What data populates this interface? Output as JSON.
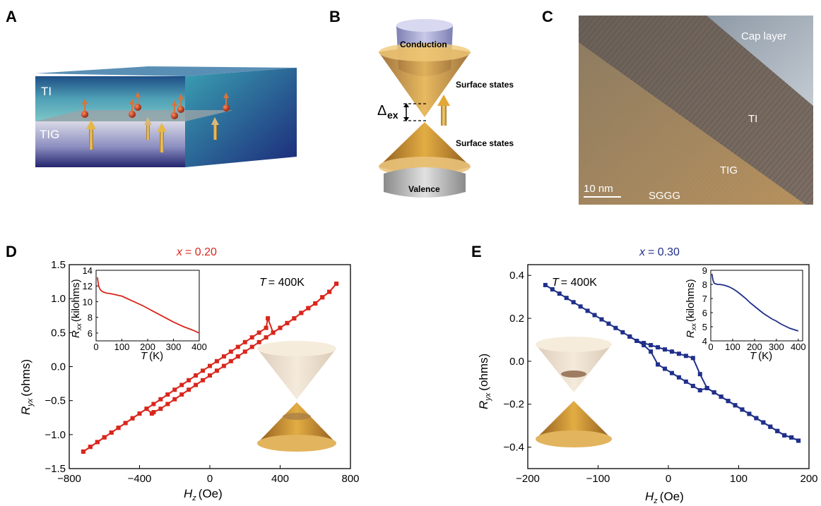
{
  "panels": {
    "A": {
      "letter": "A",
      "ti_label": "TI",
      "tig_label": "TIG"
    },
    "B": {
      "letter": "B",
      "conduction": "Conduction",
      "valence": "Valence",
      "surface_top": "Surface states",
      "surface_bottom": "Surface states",
      "gap_symbol": "Δ",
      "gap_subscript": "ex"
    },
    "C": {
      "letter": "C",
      "cap_layer": "Cap layer",
      "ti": "TI",
      "tig": "TIG",
      "substrate": "SGGG",
      "scalebar": "10 nm"
    },
    "D": {
      "letter": "D"
    },
    "E": {
      "letter": "E"
    }
  },
  "chart_data": [
    {
      "panel": "D",
      "type": "line",
      "title_var": "x",
      "title_value": "= 0.20",
      "color": "#d9261c",
      "xlabel_main": "H",
      "xlabel_sub": "z",
      "xlabel_unit": "(Oe)",
      "ylabel_main": "R",
      "ylabel_sub": "yx",
      "ylabel_unit": "(ohms)",
      "xlim": [
        -800,
        800
      ],
      "ylim": [
        -1.5,
        1.5
      ],
      "xticks": [
        "−800",
        "−400",
        "0",
        "400",
        "800"
      ],
      "yticks": [
        "−1.5",
        "−1.0",
        "−0.5",
        "0.0",
        "0.5",
        "1.0",
        "1.5"
      ],
      "annotation_var": "T",
      "annotation_value": "= 400K",
      "series": [
        {
          "x": [
            -720,
            -680,
            -640,
            -600,
            -560,
            -520,
            -480,
            -440,
            -400,
            -360,
            -320,
            -280,
            -240,
            -200,
            -160,
            -120,
            -80,
            -40,
            0,
            40,
            80,
            120,
            160,
            200,
            240,
            280,
            320,
            330,
            360,
            400,
            440,
            480,
            520,
            560,
            600,
            640,
            680,
            720
          ],
          "y": [
            -1.25,
            -1.18,
            -1.11,
            -1.04,
            -0.97,
            -0.9,
            -0.83,
            -0.76,
            -0.69,
            -0.62,
            -0.55,
            -0.48,
            -0.41,
            -0.34,
            -0.27,
            -0.2,
            -0.13,
            -0.06,
            0.01,
            0.08,
            0.15,
            0.22,
            0.29,
            0.36,
            0.43,
            0.5,
            0.57,
            0.71,
            0.5,
            0.57,
            0.64,
            0.71,
            0.79,
            0.86,
            0.93,
            1.02,
            1.1,
            1.22
          ]
        },
        {
          "x": [
            720,
            680,
            640,
            600,
            560,
            520,
            480,
            440,
            400,
            360,
            320,
            280,
            240,
            200,
            160,
            120,
            80,
            40,
            0,
            -40,
            -80,
            -120,
            -160,
            -200,
            -240,
            -280,
            -320,
            -330,
            -360,
            -400,
            -440,
            -480,
            -520,
            -560,
            -600,
            -640,
            -680,
            -720
          ],
          "y": [
            1.22,
            1.1,
            1.02,
            0.93,
            0.86,
            0.79,
            0.71,
            0.64,
            0.57,
            0.5,
            0.43,
            0.36,
            0.29,
            0.22,
            0.15,
            0.08,
            0.01,
            -0.06,
            -0.13,
            -0.2,
            -0.27,
            -0.34,
            -0.41,
            -0.48,
            -0.55,
            -0.62,
            -0.67,
            -0.69,
            -0.62,
            -0.69,
            -0.76,
            -0.83,
            -0.9,
            -0.97,
            -1.04,
            -1.11,
            -1.18,
            -1.25
          ]
        }
      ],
      "inset": {
        "type": "line",
        "xlabel_main": "T",
        "xlabel_unit": "(K)",
        "ylabel_main": "R",
        "ylabel_sub": "xx",
        "ylabel_unit": "(kilohms)",
        "xlim": [
          0,
          400
        ],
        "ylim": [
          5,
          14
        ],
        "xticks": [
          "0",
          "100",
          "200",
          "300",
          "400"
        ],
        "yticks": [
          "6",
          "8",
          "10",
          "12",
          "14"
        ],
        "x": [
          5,
          10,
          15,
          20,
          30,
          40,
          60,
          80,
          100,
          120,
          140,
          160,
          180,
          200,
          220,
          240,
          260,
          280,
          300,
          320,
          340,
          360,
          380,
          400
        ],
        "y": [
          13.1,
          12.0,
          11.6,
          11.4,
          11.2,
          11.1,
          11.0,
          10.85,
          10.7,
          10.4,
          10.1,
          9.8,
          9.5,
          9.15,
          8.8,
          8.45,
          8.1,
          7.75,
          7.4,
          7.1,
          6.8,
          6.55,
          6.3,
          6.0
        ]
      }
    },
    {
      "panel": "E",
      "type": "line",
      "title_var": "x",
      "title_value": "= 0.30",
      "color": "#1f2f8a",
      "xlabel_main": "H",
      "xlabel_sub": "z",
      "xlabel_unit": "(Oe)",
      "ylabel_main": "R",
      "ylabel_sub": "yx",
      "ylabel_unit": "(ohms)",
      "xlim": [
        -200,
        200
      ],
      "ylim": [
        -0.5,
        0.45
      ],
      "xticks": [
        "−200",
        "−100",
        "0",
        "100",
        "200"
      ],
      "yticks": [
        "−0.4",
        "−0.2",
        "0.0",
        "0.2",
        "0.4"
      ],
      "annotation_var": "T",
      "annotation_value": "= 400K",
      "series": [
        {
          "x": [
            -175,
            -165,
            -155,
            -145,
            -135,
            -125,
            -115,
            -105,
            -95,
            -85,
            -75,
            -65,
            -55,
            -45,
            -35,
            -25,
            -15,
            -5,
            5,
            15,
            25,
            35,
            45,
            55,
            65,
            75,
            85,
            95,
            105,
            115,
            125,
            135,
            145,
            155,
            165,
            175,
            185
          ],
          "y": [
            0.355,
            0.335,
            0.315,
            0.295,
            0.275,
            0.255,
            0.235,
            0.215,
            0.195,
            0.175,
            0.155,
            0.135,
            0.115,
            0.095,
            0.075,
            0.045,
            -0.015,
            -0.035,
            -0.055,
            -0.075,
            -0.095,
            -0.115,
            -0.135,
            -0.125,
            -0.145,
            -0.165,
            -0.185,
            -0.205,
            -0.225,
            -0.245,
            -0.265,
            -0.285,
            -0.305,
            -0.325,
            -0.345,
            -0.355,
            -0.37
          ]
        },
        {
          "x": [
            185,
            175,
            165,
            155,
            145,
            135,
            125,
            115,
            105,
            95,
            85,
            75,
            65,
            55,
            45,
            35,
            25,
            15,
            5,
            -5,
            -15,
            -25,
            -35,
            -45,
            -55
          ],
          "y": [
            -0.37,
            -0.355,
            -0.345,
            -0.325,
            -0.305,
            -0.285,
            -0.265,
            -0.245,
            -0.225,
            -0.205,
            -0.185,
            -0.165,
            -0.145,
            -0.125,
            -0.06,
            0.015,
            0.025,
            0.035,
            0.045,
            0.055,
            0.065,
            0.075,
            0.085,
            0.095,
            0.115
          ]
        }
      ],
      "inset": {
        "type": "line",
        "xlabel_main": "T",
        "xlabel_unit": "(K)",
        "ylabel_main": "R",
        "ylabel_sub": "xx",
        "ylabel_unit": "(kilohms)",
        "xlim": [
          0,
          420
        ],
        "ylim": [
          4,
          9
        ],
        "xticks": [
          "0",
          "100",
          "200",
          "300",
          "400"
        ],
        "yticks": [
          "4",
          "5",
          "6",
          "7",
          "8",
          "9"
        ],
        "x": [
          5,
          10,
          15,
          20,
          30,
          40,
          60,
          80,
          100,
          120,
          140,
          160,
          180,
          200,
          220,
          240,
          260,
          280,
          300,
          320,
          340,
          360,
          380,
          400
        ],
        "y": [
          8.75,
          8.3,
          8.1,
          8.05,
          8.0,
          8.0,
          7.95,
          7.85,
          7.7,
          7.5,
          7.25,
          7.0,
          6.7,
          6.45,
          6.2,
          5.95,
          5.75,
          5.55,
          5.4,
          5.2,
          5.05,
          4.9,
          4.8,
          4.7
        ]
      }
    }
  ]
}
